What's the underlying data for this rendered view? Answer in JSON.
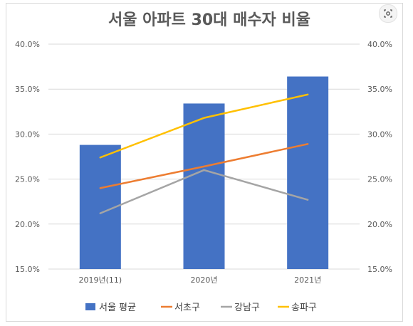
{
  "chart_data": {
    "type": "bar",
    "title": "서울 아파트 30대 매수자 비율",
    "categories": [
      "2019년(11)",
      "2020년",
      "2021년"
    ],
    "ylim": [
      15.0,
      40.0
    ],
    "y_ticks": [
      "15.0%",
      "20.0%",
      "25.0%",
      "30.0%",
      "35.0%",
      "40.0%"
    ],
    "y_ticks_right": [
      "15.0%",
      "20.0%",
      "25.0%",
      "30.0%",
      "35.0%",
      "40.0%"
    ],
    "grid": true,
    "legend_position": "bottom",
    "series": [
      {
        "name": "서울 평균",
        "type": "bar",
        "color": "#4472C4",
        "values": [
          28.8,
          33.4,
          36.4
        ]
      },
      {
        "name": "서초구",
        "type": "line",
        "color": "#ED7D31",
        "values": [
          24.0,
          26.4,
          28.9
        ]
      },
      {
        "name": "강남구",
        "type": "line",
        "color": "#A5A5A5",
        "values": [
          21.2,
          26.0,
          22.7
        ]
      },
      {
        "name": "송파구",
        "type": "line",
        "color": "#FFC000",
        "values": [
          27.4,
          31.8,
          34.4
        ]
      }
    ]
  },
  "ui": {
    "lens_icon": "visual-search-icon"
  }
}
